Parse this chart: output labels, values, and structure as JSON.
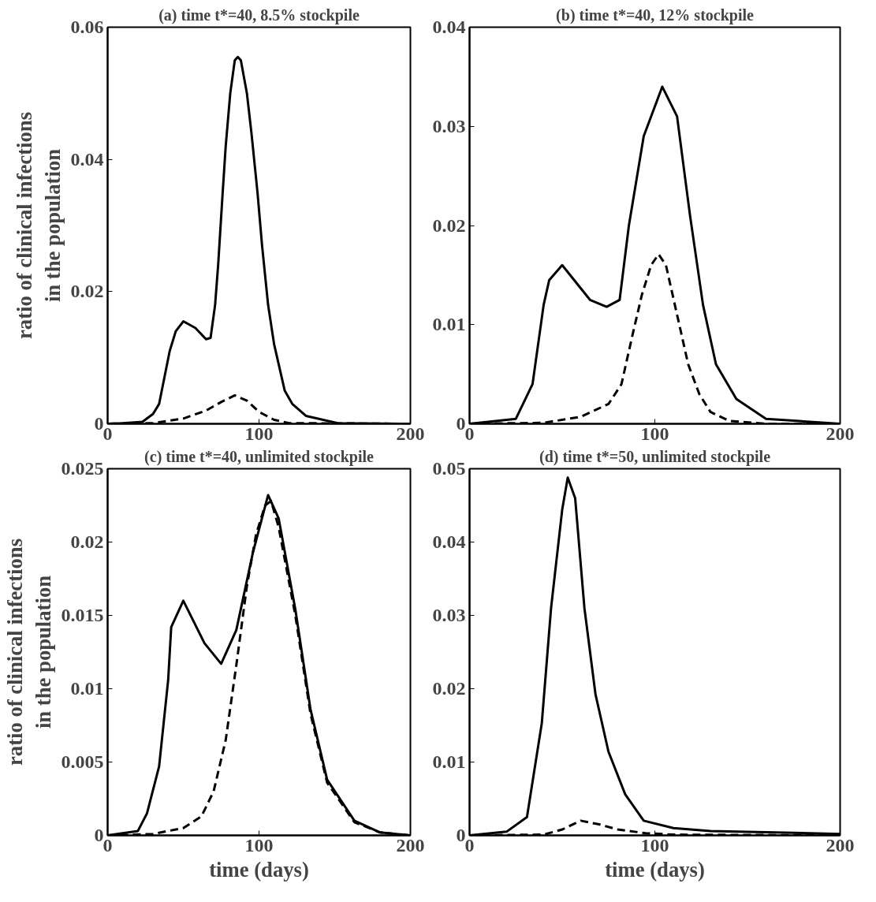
{
  "chart_data": [
    {
      "type": "line",
      "title": "(a) time t*=40, 8.5% stockpile",
      "ylabel": "ratio of clinical infections\nin the population",
      "xlim": [
        0,
        200
      ],
      "xticks": [
        0,
        100,
        200
      ],
      "ylim": [
        0,
        0.06
      ],
      "yticks": [
        0,
        0.02,
        0.04,
        0.06
      ],
      "series": [
        {
          "color": "#000000",
          "line_style": "solid",
          "x": [
            0,
            10,
            23,
            30,
            34,
            41,
            45,
            50,
            58,
            65,
            68,
            71,
            73,
            76,
            78,
            81,
            84,
            86,
            88,
            92,
            95,
            99,
            102,
            106,
            110,
            117,
            122,
            131,
            152,
            200
          ],
          "values": [
            0,
            0.0001,
            0.0003,
            0.0015,
            0.003,
            0.011,
            0.014,
            0.0155,
            0.0145,
            0.0128,
            0.013,
            0.018,
            0.024,
            0.035,
            0.042,
            0.05,
            0.055,
            0.0555,
            0.055,
            0.05,
            0.044,
            0.035,
            0.027,
            0.018,
            0.012,
            0.005,
            0.003,
            0.0012,
            0.0001,
            0
          ]
        },
        {
          "color": "#000000",
          "line_style": "dashed",
          "x": [
            0,
            30,
            50,
            65,
            75,
            84,
            92,
            100,
            110,
            120,
            200
          ],
          "values": [
            0,
            0.0001,
            0.0008,
            0.002,
            0.0033,
            0.0043,
            0.0035,
            0.0018,
            0.0006,
            0.0001,
            0
          ]
        }
      ]
    },
    {
      "type": "line",
      "title": "(b) time t*=40, 12% stockpile",
      "xlim": [
        0,
        200
      ],
      "xticks": [
        0,
        100,
        200
      ],
      "ylim": [
        0,
        0.04
      ],
      "yticks": [
        0,
        0.01,
        0.02,
        0.03,
        0.04
      ],
      "series": [
        {
          "color": "#000000",
          "line_style": "solid",
          "x": [
            0,
            25,
            34,
            40,
            43,
            50,
            65,
            74,
            81,
            86,
            94,
            104,
            112,
            119,
            126,
            133,
            144,
            160,
            200
          ],
          "values": [
            0,
            0.0005,
            0.004,
            0.012,
            0.0145,
            0.016,
            0.0125,
            0.0118,
            0.0125,
            0.02,
            0.029,
            0.034,
            0.031,
            0.021,
            0.012,
            0.006,
            0.0025,
            0.0005,
            0
          ]
        },
        {
          "color": "#000000",
          "line_style": "dashed",
          "x": [
            0,
            40,
            60,
            75,
            82,
            88,
            93,
            98,
            102,
            106,
            112,
            118,
            124,
            130,
            140,
            160,
            200
          ],
          "values": [
            0,
            0.0001,
            0.0007,
            0.002,
            0.004,
            0.009,
            0.013,
            0.016,
            0.0171,
            0.016,
            0.011,
            0.006,
            0.003,
            0.0012,
            0.0003,
            0,
            0
          ]
        }
      ]
    },
    {
      "type": "line",
      "title": "(c) time t*=40, unlimited stockpile",
      "xlabel": "time (days)",
      "ylabel": "ratio of clinical infections\nin the population",
      "xlim": [
        0,
        200
      ],
      "xticks": [
        0,
        100,
        200
      ],
      "ylim": [
        0,
        0.025
      ],
      "yticks": [
        0,
        0.005,
        0.01,
        0.015,
        0.02,
        0.025
      ],
      "series": [
        {
          "color": "#000000",
          "line_style": "solid",
          "x": [
            0,
            20,
            26,
            34,
            40,
            42,
            50,
            64,
            75,
            85,
            96,
            106,
            113,
            124,
            134,
            145,
            163,
            180,
            200
          ],
          "values": [
            0,
            0.0003,
            0.0015,
            0.0047,
            0.0106,
            0.0142,
            0.016,
            0.0131,
            0.0117,
            0.014,
            0.0193,
            0.0232,
            0.0216,
            0.0154,
            0.0086,
            0.0038,
            0.001,
            0.0002,
            0
          ]
        },
        {
          "color": "#000000",
          "line_style": "dashed",
          "x": [
            0,
            30,
            50,
            62,
            70,
            78,
            85,
            92,
            98,
            104,
            108,
            113,
            124,
            134,
            145,
            163,
            180,
            200
          ],
          "values": [
            0,
            0.0001,
            0.0005,
            0.0013,
            0.003,
            0.0065,
            0.0116,
            0.017,
            0.0205,
            0.0225,
            0.0228,
            0.021,
            0.015,
            0.0083,
            0.0036,
            0.0009,
            0.0002,
            0
          ]
        }
      ]
    },
    {
      "type": "line",
      "title": "(d) time t*=50, unlimited stockpile",
      "xlabel": "time (days)",
      "xlim": [
        0,
        200
      ],
      "xticks": [
        0,
        100,
        200
      ],
      "ylim": [
        0,
        0.05
      ],
      "yticks": [
        0,
        0.01,
        0.02,
        0.03,
        0.04,
        0.05
      ],
      "series": [
        {
          "color": "#000000",
          "line_style": "solid",
          "x": [
            0,
            20,
            31,
            39,
            44,
            50,
            53,
            57,
            62,
            68,
            75,
            84,
            94,
            110,
            130,
            200
          ],
          "values": [
            0,
            0.0005,
            0.0025,
            0.0153,
            0.031,
            0.0444,
            0.0488,
            0.046,
            0.031,
            0.0192,
            0.0114,
            0.0056,
            0.002,
            0.001,
            0.0006,
            0.0002
          ]
        },
        {
          "color": "#000000",
          "line_style": "dashed",
          "x": [
            0,
            40,
            50,
            60,
            70,
            80,
            95,
            110,
            200
          ],
          "values": [
            0,
            0.0001,
            0.0008,
            0.002,
            0.0015,
            0.0008,
            0.0003,
            0.0001,
            0
          ]
        }
      ]
    }
  ]
}
